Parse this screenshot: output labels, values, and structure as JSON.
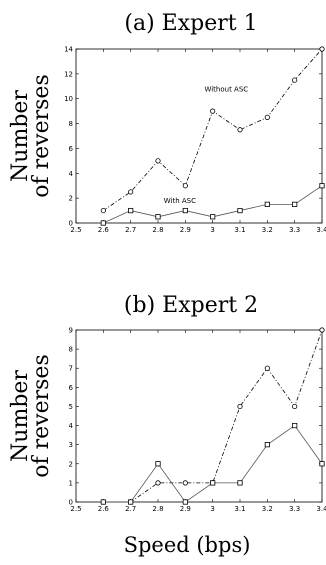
{
  "chart_data": [
    {
      "type": "line",
      "title": "(a) Expert 1",
      "ylabel_line1": "Number",
      "ylabel_line2": "of reverses",
      "xlabel": "",
      "xlim": [
        2.5,
        3.4
      ],
      "ylim": [
        0,
        14
      ],
      "xticks": [
        "2.5",
        "2.6",
        "2.7",
        "2.8",
        "2.9",
        "3",
        "3.1",
        "3.2",
        "3.3",
        "3.4"
      ],
      "yticks": [
        "0",
        "2",
        "4",
        "6",
        "8",
        "10",
        "12",
        "14"
      ],
      "x": [
        2.6,
        2.7,
        2.8,
        2.9,
        3.0,
        3.1,
        3.2,
        3.3,
        3.4
      ],
      "series": [
        {
          "name": "Without ASC",
          "style": "dash-dot",
          "marker": "circle",
          "values": [
            1,
            2.5,
            5,
            3,
            9,
            7.5,
            8.5,
            11.5,
            14
          ]
        },
        {
          "name": "With ASC",
          "style": "solid",
          "marker": "square",
          "values": [
            0,
            1,
            0.5,
            1,
            0.5,
            1,
            1.5,
            1.5,
            3
          ]
        }
      ],
      "annotations": [
        {
          "text": "Without ASC",
          "x": 3.05,
          "y": 10.6
        },
        {
          "text": "With ASC",
          "x": 2.88,
          "y": 1.6
        }
      ],
      "grid": false
    },
    {
      "type": "line",
      "title": "(b) Expert 2",
      "ylabel_line1": "Number",
      "ylabel_line2": "of reverses",
      "xlabel": "Speed (bps)",
      "xlim": [
        2.5,
        3.4
      ],
      "ylim": [
        0,
        9
      ],
      "xticks": [
        "2.5",
        "2.6",
        "2.7",
        "2.8",
        "2.9",
        "3",
        "3.1",
        "3.2",
        "3.3",
        "3.4"
      ],
      "yticks": [
        "0",
        "1",
        "2",
        "3",
        "4",
        "5",
        "6",
        "7",
        "8",
        "9"
      ],
      "x": [
        2.6,
        2.7,
        2.8,
        2.9,
        3.0,
        3.1,
        3.2,
        3.3,
        3.4
      ],
      "series": [
        {
          "name": "",
          "style": "dash-dot",
          "marker": "circle",
          "values": [
            0,
            0,
            1,
            1,
            1,
            5,
            7,
            5,
            9
          ]
        },
        {
          "name": "",
          "style": "solid",
          "marker": "square",
          "values": [
            0,
            0,
            2,
            0,
            1,
            1,
            3,
            4,
            2
          ]
        }
      ],
      "annotations": [],
      "grid": false
    }
  ]
}
